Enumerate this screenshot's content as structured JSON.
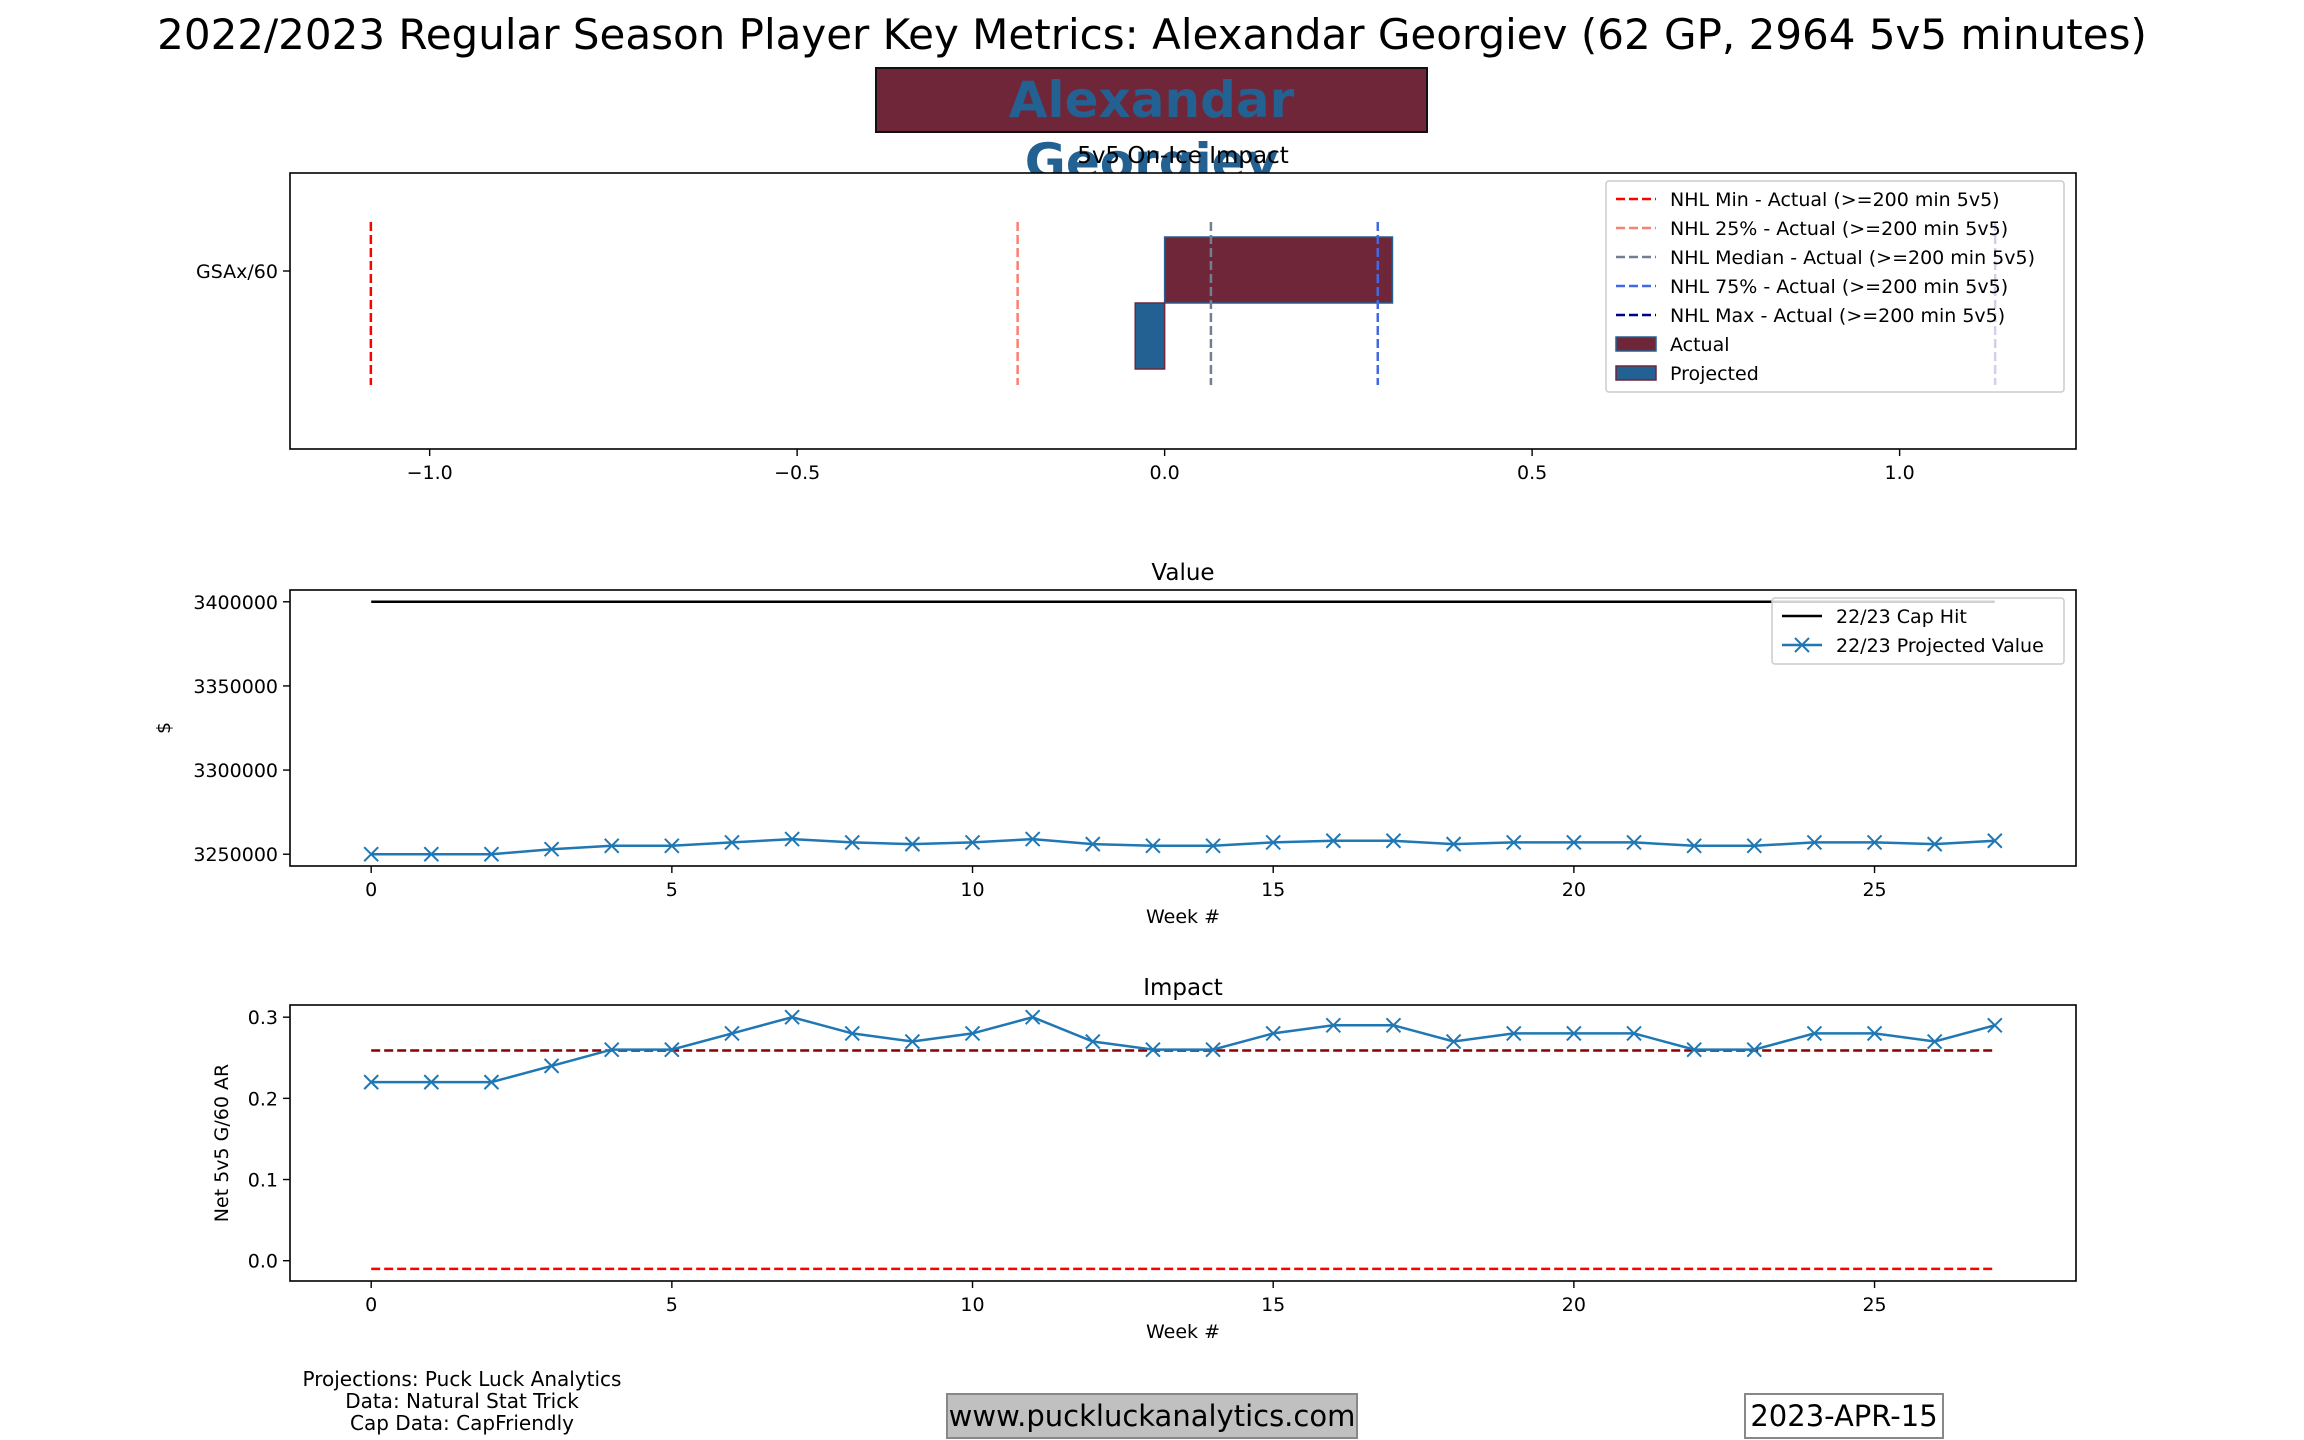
{
  "figure": {
    "title": "2022/2023 Regular Season Player Key Metrics: Alexandar Georgiev (62 GP, 2964 5v5 minutes)",
    "player_name": "Alexandar Georgiev",
    "credits": [
      "Projections: Puck Luck Analytics",
      "Data: Natural Stat Trick",
      "Cap Data: CapFriendly"
    ],
    "website": "www.puckluckanalytics.com",
    "date": "2023-APR-15",
    "colors": {
      "actual": "#6f2639",
      "projected": "#236192",
      "line": "#1f77b4",
      "accent": "#8b0000"
    }
  },
  "chart_data": [
    {
      "type": "bar",
      "orientation": "horizontal",
      "title": "5v5 On-Ice Impact",
      "xlabel": "",
      "ylabel": "",
      "categories": [
        "GSAx/60"
      ],
      "series": [
        {
          "name": "Actual",
          "values": [
            0.31
          ],
          "color": "#6f2639"
        },
        {
          "name": "Projected",
          "values": [
            -0.04
          ],
          "color": "#236192"
        }
      ],
      "reference_lines": [
        {
          "name": "NHL Min - Actual (>=200 min 5v5)",
          "value": -1.08,
          "color": "#ff0000"
        },
        {
          "name": "NHL 25% - Actual (>=200 min 5v5)",
          "value": -0.2,
          "color": "#fa8072"
        },
        {
          "name": "NHL Median - Actual (>=200 min 5v5)",
          "value": 0.063,
          "color": "#708090"
        },
        {
          "name": "NHL 75% - Actual (>=200 min 5v5)",
          "value": 0.29,
          "color": "#4169e1"
        },
        {
          "name": "NHL Max - Actual (>=200 min 5v5)",
          "value": 1.13,
          "color": "#00008b"
        }
      ],
      "xlim": [
        -1.19,
        1.24
      ],
      "xticks": [
        -1.0,
        -0.5,
        0.0,
        0.5,
        1.0
      ],
      "xtick_labels": [
        "−1.0",
        "−0.5",
        "0.0",
        "0.5",
        "1.0"
      ],
      "legend": "top-right"
    },
    {
      "type": "line",
      "title": "Value",
      "xlabel": "Week #",
      "ylabel": "$",
      "x": [
        0,
        1,
        2,
        3,
        4,
        5,
        6,
        7,
        8,
        9,
        10,
        11,
        12,
        13,
        14,
        15,
        16,
        17,
        18,
        19,
        20,
        21,
        22,
        23,
        24,
        25,
        26,
        27
      ],
      "series": [
        {
          "name": "22/23 Cap Hit",
          "color": "#000000",
          "marker": "none",
          "values": [
            3400000,
            3400000,
            3400000,
            3400000,
            3400000,
            3400000,
            3400000,
            3400000,
            3400000,
            3400000,
            3400000,
            3400000,
            3400000,
            3400000,
            3400000,
            3400000,
            3400000,
            3400000,
            3400000,
            3400000,
            3400000,
            3400000,
            3400000,
            3400000,
            3400000,
            3400000,
            3400000,
            3400000
          ]
        },
        {
          "name": "22/23 Projected Value",
          "color": "#1f77b4",
          "marker": "x",
          "values": [
            3250000,
            3250000,
            3250000,
            3253000,
            3255000,
            3255000,
            3257000,
            3259000,
            3257000,
            3256000,
            3257000,
            3259000,
            3256000,
            3255000,
            3255000,
            3257000,
            3258000,
            3258000,
            3256000,
            3257000,
            3257000,
            3257000,
            3255000,
            3255000,
            3257000,
            3257000,
            3256000,
            3258000
          ]
        }
      ],
      "xlim": [
        -1.35,
        28.35
      ],
      "ylim": [
        3243000,
        3407000
      ],
      "xticks": [
        0,
        5,
        10,
        15,
        20,
        25
      ],
      "yticks": [
        3250000,
        3300000,
        3350000,
        3400000
      ],
      "legend": "top-right"
    },
    {
      "type": "line",
      "title": "Impact",
      "xlabel": "Week #",
      "ylabel": "Net 5v5 G/60 AR",
      "x": [
        0,
        1,
        2,
        3,
        4,
        5,
        6,
        7,
        8,
        9,
        10,
        11,
        12,
        13,
        14,
        15,
        16,
        17,
        18,
        19,
        20,
        21,
        22,
        23,
        24,
        25,
        26,
        27
      ],
      "series": [
        {
          "color": "#1f77b4",
          "marker": "x",
          "values": [
            0.22,
            0.22,
            0.22,
            0.24,
            0.26,
            0.26,
            0.28,
            0.3,
            0.28,
            0.27,
            0.28,
            0.3,
            0.27,
            0.26,
            0.26,
            0.28,
            0.29,
            0.29,
            0.27,
            0.28,
            0.28,
            0.28,
            0.26,
            0.26,
            0.28,
            0.28,
            0.27,
            0.29
          ]
        }
      ],
      "reference_lines": [
        {
          "value": 0.259,
          "color": "#8b0000",
          "style": "dashed"
        },
        {
          "value": -0.01,
          "color": "#ff0000",
          "style": "dashed"
        }
      ],
      "xlim": [
        -1.35,
        28.35
      ],
      "ylim": [
        -0.025,
        0.315
      ],
      "xticks": [
        0,
        5,
        10,
        15,
        20,
        25
      ],
      "yticks": [
        0.0,
        0.1,
        0.2,
        0.3
      ],
      "ytick_labels": [
        "0.0",
        "0.1",
        "0.2",
        "0.3"
      ]
    }
  ]
}
